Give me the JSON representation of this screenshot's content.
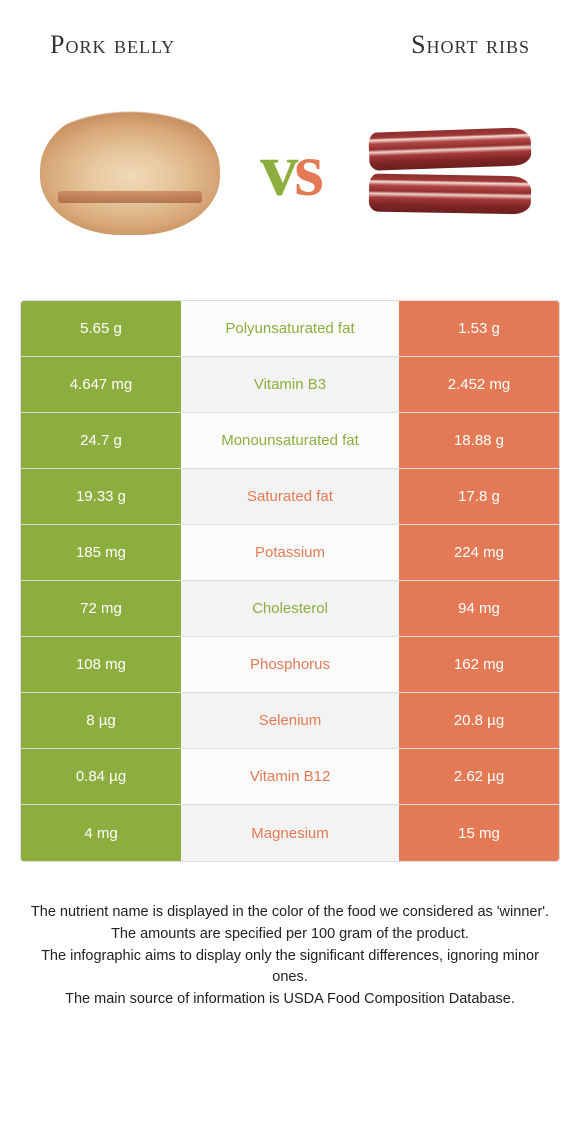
{
  "colors": {
    "left": "#8cae3e",
    "right": "#e47a55"
  },
  "foods": {
    "left": "Pork belly",
    "right": "Short ribs"
  },
  "vs": "vs",
  "rows": [
    {
      "nutrient": "Polyunsaturated fat",
      "left": "5.65 g",
      "right": "1.53 g",
      "winner": "left"
    },
    {
      "nutrient": "Vitamin B3",
      "left": "4.647 mg",
      "right": "2.452 mg",
      "winner": "left"
    },
    {
      "nutrient": "Monounsaturated fat",
      "left": "24.7 g",
      "right": "18.88 g",
      "winner": "left"
    },
    {
      "nutrient": "Saturated fat",
      "left": "19.33 g",
      "right": "17.8 g",
      "winner": "right"
    },
    {
      "nutrient": "Potassium",
      "left": "185 mg",
      "right": "224 mg",
      "winner": "right"
    },
    {
      "nutrient": "Cholesterol",
      "left": "72 mg",
      "right": "94 mg",
      "winner": "left"
    },
    {
      "nutrient": "Phosphorus",
      "left": "108 mg",
      "right": "162 mg",
      "winner": "right"
    },
    {
      "nutrient": "Selenium",
      "left": "8 µg",
      "right": "20.8 µg",
      "winner": "right"
    },
    {
      "nutrient": "Vitamin B12",
      "left": "0.84 µg",
      "right": "2.62 µg",
      "winner": "right"
    },
    {
      "nutrient": "Magnesium",
      "left": "4 mg",
      "right": "15 mg",
      "winner": "right"
    }
  ],
  "footer": [
    "The nutrient name is displayed in the color of the food we considered as 'winner'.",
    "The amounts are specified per 100 gram of the product.",
    "The infographic aims to display only the significant differences, ignoring minor ones.",
    "The main source of information is USDA Food Composition Database."
  ]
}
